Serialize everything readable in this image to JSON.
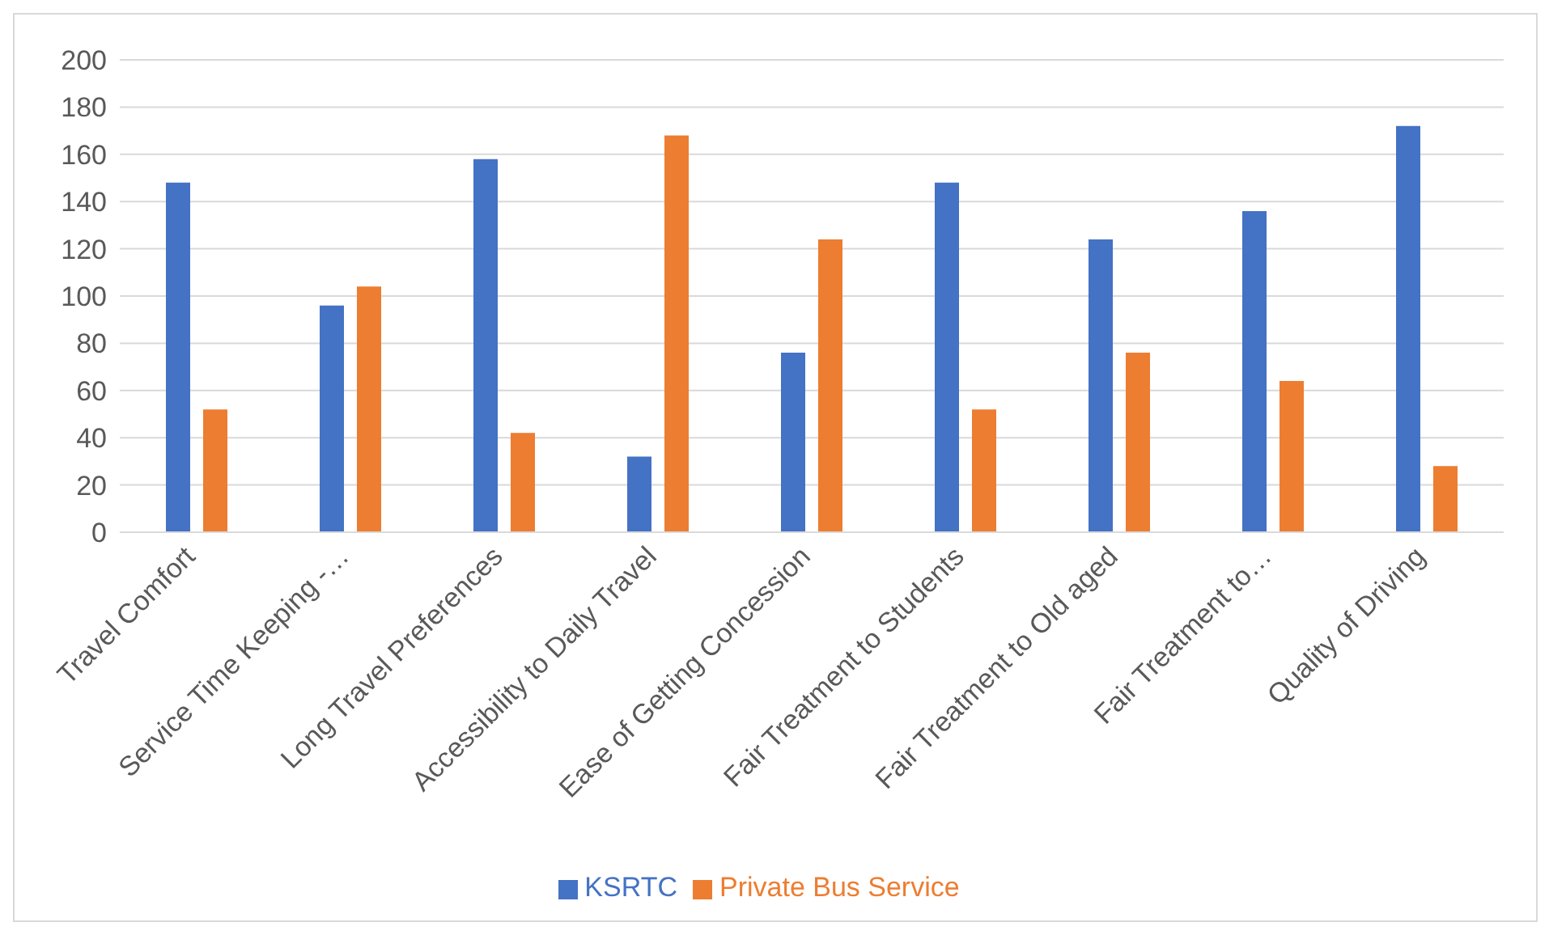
{
  "chart_data": {
    "type": "bar",
    "categories": [
      "Travel Comfort",
      "Service Time Keeping -…",
      "Long Travel Preferences",
      "Accessibility to Daily Travel",
      "Ease of Getting Concession",
      "Fair Treatment to Students",
      "Fair Treatment to Old aged",
      "Fair Treatment to…",
      "Quality of Driving"
    ],
    "series": [
      {
        "name": "KSRTC",
        "color": "#4472c4",
        "values": [
          148,
          96,
          158,
          32,
          76,
          148,
          124,
          136,
          172
        ]
      },
      {
        "name": "Private Bus Service",
        "color": "#ed7d31",
        "values": [
          52,
          104,
          42,
          168,
          124,
          52,
          76,
          64,
          28
        ]
      }
    ],
    "ylim": [
      0,
      200
    ],
    "yticks": [
      0,
      20,
      40,
      60,
      80,
      100,
      120,
      140,
      160,
      180,
      200
    ],
    "grid": "y",
    "legend": "bottom"
  }
}
